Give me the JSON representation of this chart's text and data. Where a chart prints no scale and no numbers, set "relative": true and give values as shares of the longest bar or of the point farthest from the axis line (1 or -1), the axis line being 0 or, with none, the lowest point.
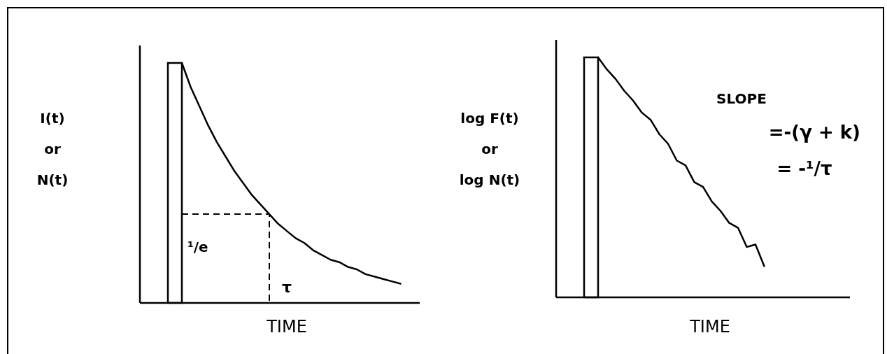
{
  "chart_data": [
    {
      "type": "line",
      "relative": true,
      "ylabel": "I(t)\nor\nN(t)",
      "xlabel": "TIME",
      "annotations": [
        "¹/e",
        "τ"
      ],
      "categories": [
        null,
        null,
        null,
        null,
        null,
        null,
        null,
        null,
        null,
        null,
        null,
        null,
        null,
        null,
        null,
        null,
        null,
        null,
        null,
        null,
        null,
        null,
        null,
        null,
        null,
        null
      ],
      "series": [
        {
          "color": "#000000",
          "values": [
            1,
            0.9,
            0.82,
            0.74,
            0.67,
            0.61,
            0.55,
            0.5,
            0.45,
            0.41,
            0.37,
            0.33,
            0.3,
            0.27,
            0.25,
            0.22,
            0.2,
            0.18,
            0.17,
            0.15,
            0.14,
            0.12,
            0.11,
            0.1,
            0.09,
            0.08
          ]
        }
      ]
    },
    {
      "type": "line",
      "relative": true,
      "ylabel": "log F(t)\nor\nlog N(t)",
      "xlabel": "TIME",
      "annotations": [
        "SLOPE",
        "=-(γ + k)",
        "= -¹/τ"
      ],
      "categories": [
        null,
        null,
        null,
        null,
        null,
        null,
        null,
        null,
        null,
        null,
        null,
        null,
        null,
        null,
        null,
        null,
        null,
        null,
        null,
        null
      ],
      "series": [
        {
          "color": "#000000",
          "values": [
            1,
            0.95,
            0.91,
            0.86,
            0.82,
            0.77,
            0.74,
            0.68,
            0.64,
            0.57,
            0.55,
            0.48,
            0.46,
            0.4,
            0.36,
            0.31,
            0.29,
            0.21,
            0.22,
            0.13
          ]
        }
      ]
    }
  ]
}
